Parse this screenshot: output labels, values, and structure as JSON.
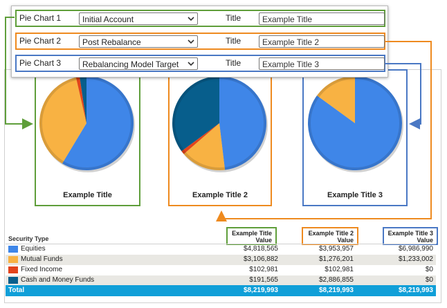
{
  "colors": {
    "green": "#5f9e3a",
    "orange": "#ee8a1f",
    "blue_outline": "#4a78c4",
    "equities": "#3f86e8",
    "mutual_funds": "#f8b243",
    "fixed_income": "#e2441c",
    "cash": "#075e8c",
    "total_bar": "#109fd8"
  },
  "config_rows": [
    {
      "label": "Pie Chart 1",
      "selected": "Initial Account",
      "title_label": "Title",
      "title_value": "Example Title"
    },
    {
      "label": "Pie Chart 2",
      "selected": "Post Rebalance",
      "title_label": "Title",
      "title_value": "Example Title 2"
    },
    {
      "label": "Pie Chart 3",
      "selected": "Rebalancing Model Target",
      "title_label": "Title",
      "title_value": "Example Title 3"
    }
  ],
  "chart_data": [
    {
      "type": "pie",
      "title": "Example Title",
      "labels": [
        "Equities",
        "Mutual Funds",
        "Fixed Income",
        "Cash and Money Funds"
      ],
      "values": [
        4818565,
        3106882,
        102981,
        191565
      ]
    },
    {
      "type": "pie",
      "title": "Example Title 2",
      "labels": [
        "Equities",
        "Mutual Funds",
        "Fixed Income",
        "Cash and Money Funds"
      ],
      "values": [
        3953957,
        1276201,
        102981,
        2886855
      ]
    },
    {
      "type": "pie",
      "title": "Example Title 3",
      "labels": [
        "Equities",
        "Mutual Funds",
        "Fixed Income",
        "Cash and Money Funds"
      ],
      "values": [
        6986990,
        1233002,
        0,
        0
      ]
    }
  ],
  "table": {
    "header": "Security Type",
    "columns": [
      {
        "line1": "Example Title",
        "line2": "Value"
      },
      {
        "line1": "Example Title 2",
        "line2": "Value"
      },
      {
        "line1": "Example Title 3",
        "line2": "Value"
      }
    ],
    "rows": [
      {
        "name": "Equities",
        "color": "#3f86e8",
        "values": [
          "$4,818,565",
          "$3,953,957",
          "$6,986,990"
        ]
      },
      {
        "name": "Mutual Funds",
        "color": "#f8b243",
        "values": [
          "$3,106,882",
          "$1,276,201",
          "$1,233,002"
        ]
      },
      {
        "name": "Fixed Income",
        "color": "#e2441c",
        "values": [
          "$102,981",
          "$102,981",
          "$0"
        ]
      },
      {
        "name": "Cash and Money Funds",
        "color": "#075e8c",
        "values": [
          "$191,565",
          "$2,886,855",
          "$0"
        ]
      }
    ],
    "total": {
      "label": "Total",
      "values": [
        "$8,219,993",
        "$8,219,993",
        "$8,219,993"
      ]
    }
  }
}
